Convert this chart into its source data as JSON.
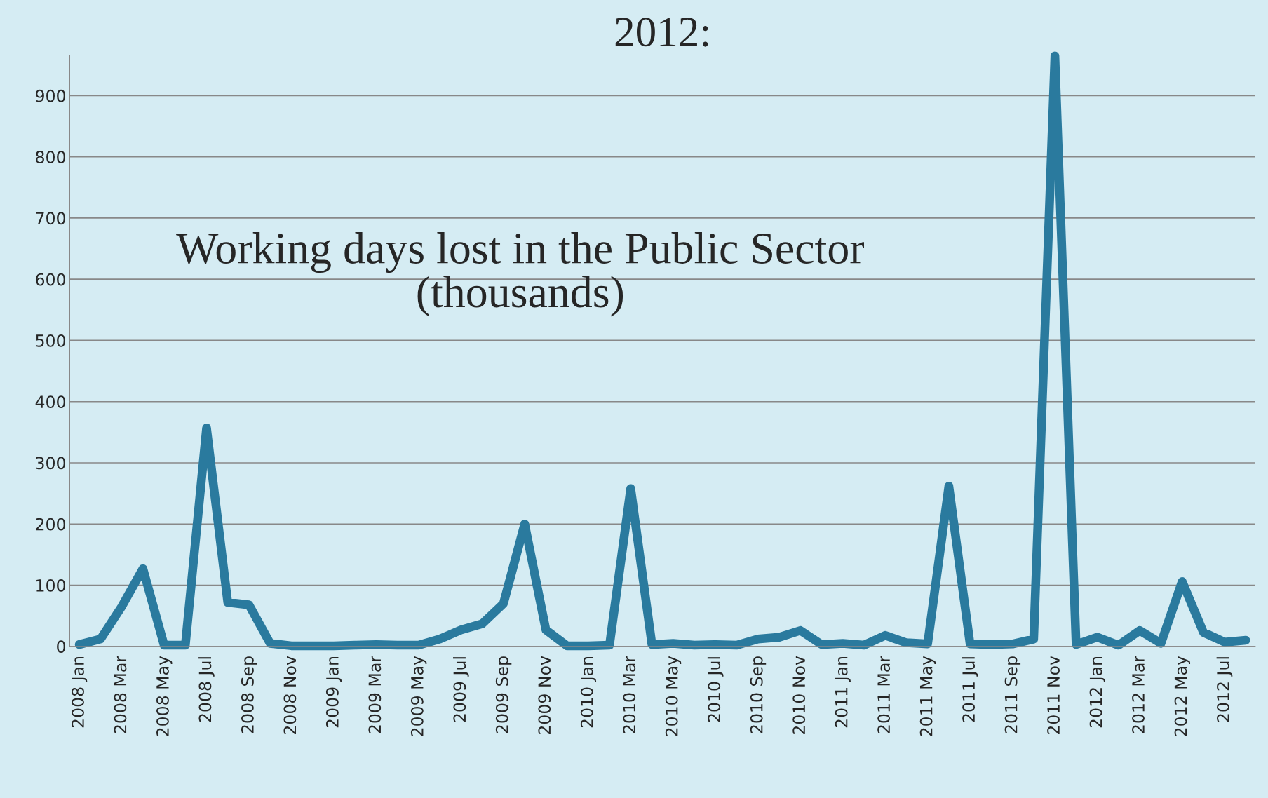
{
  "chart_data": {
    "type": "line",
    "title": "2012:",
    "annotations": [
      "Working days lost in the Public Sector\n(thousands)"
    ],
    "categories": [
      "2008 Jan",
      null,
      "2008 Mar",
      null,
      "2008 May",
      null,
      "2008 Jul",
      null,
      "2008 Sep",
      null,
      "2008 Nov",
      null,
      "2009 Jan",
      null,
      "2009 Mar",
      null,
      "2009 May",
      null,
      "2009 Jul",
      null,
      "2009 Sep",
      null,
      "2009 Nov",
      null,
      "2010 Jan",
      null,
      "2010 Mar",
      null,
      "2010 May",
      null,
      "2010 Jul",
      null,
      "2010 Sep",
      null,
      "2010 Nov",
      null,
      "2011 Jan",
      null,
      "2011 Mar",
      null,
      "2011 May",
      null,
      "2011 Jul",
      null,
      "2011 Sep",
      null,
      "2011 Nov",
      null,
      "2012 Jan",
      null,
      "2012 Mar",
      null,
      "2012 May",
      null,
      "2012 Jul",
      null
    ],
    "series": [
      {
        "color": "#2a7a9e",
        "values": [
          3,
          12,
          65,
          127,
          2,
          2,
          357,
          72,
          68,
          5,
          1,
          1,
          1,
          2,
          3,
          2,
          2,
          12,
          27,
          37,
          70,
          200,
          27,
          1,
          1,
          2,
          258,
          3,
          5,
          2,
          3,
          2,
          12,
          15,
          26,
          3,
          5,
          2,
          18,
          6,
          4,
          262,
          4,
          3,
          4,
          12,
          965,
          3,
          15,
          2,
          26,
          5,
          106,
          23,
          7,
          10
        ]
      }
    ],
    "ylim": [
      0,
      965
    ],
    "yticks": [
      0,
      100,
      200,
      300,
      400,
      500,
      600,
      700,
      800,
      900
    ],
    "grid": "y",
    "legend": false,
    "marker": "none",
    "line_style": "solid"
  }
}
